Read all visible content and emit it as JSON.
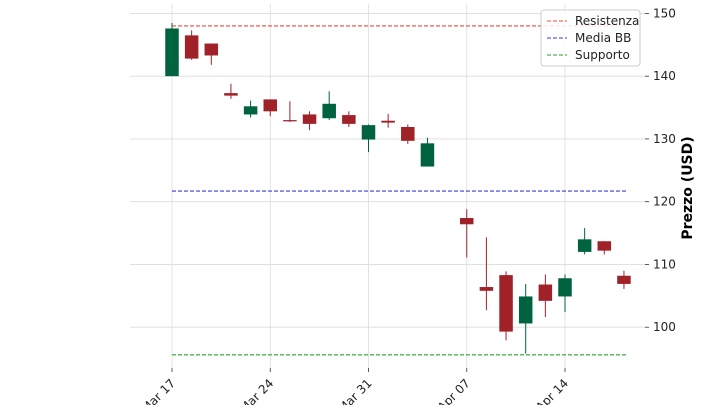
{
  "chart_data": {
    "type": "candlestick",
    "title": "",
    "xlabel": "",
    "ylabel": "Prezzo (USD)",
    "ylim": [
      93.5,
      151.5
    ],
    "y_ticks": [
      100,
      110,
      120,
      130,
      140,
      150
    ],
    "y_axis_side": "right",
    "grid": true,
    "legend_position": "top-right",
    "colors": {
      "up": "#006340",
      "down": "#a02128",
      "resistance": "#e74c3c",
      "mean": "#3b3bdc",
      "support": "#2ca02c"
    },
    "x_ticks": [
      {
        "label": "Mar 17",
        "index": 0
      },
      {
        "label": "Mar 24",
        "index": 5
      },
      {
        "label": "Mar 31",
        "index": 10
      },
      {
        "label": "Apr 07",
        "index": 15
      },
      {
        "label": "Apr 14",
        "index": 20
      }
    ],
    "candles": [
      {
        "index": 0,
        "open": 140.0,
        "high": 148.5,
        "low": 140.0,
        "close": 147.6
      },
      {
        "index": 1,
        "open": 146.5,
        "high": 147.3,
        "low": 142.6,
        "close": 142.8
      },
      {
        "index": 2,
        "open": 145.2,
        "high": 145.2,
        "low": 141.8,
        "close": 143.3
      },
      {
        "index": 3,
        "open": 137.3,
        "high": 138.8,
        "low": 136.4,
        "close": 136.9
      },
      {
        "index": 4,
        "open": 133.9,
        "high": 136.1,
        "low": 133.4,
        "close": 135.2
      },
      {
        "index": 5,
        "open": 136.3,
        "high": 136.3,
        "low": 133.6,
        "close": 134.4
      },
      {
        "index": 6,
        "open": 133.0,
        "high": 136.0,
        "low": 132.7,
        "close": 132.8
      },
      {
        "index": 7,
        "open": 133.9,
        "high": 134.4,
        "low": 131.4,
        "close": 132.4
      },
      {
        "index": 8,
        "open": 133.3,
        "high": 137.6,
        "low": 133.0,
        "close": 135.6
      },
      {
        "index": 9,
        "open": 133.8,
        "high": 134.4,
        "low": 131.9,
        "close": 132.4
      },
      {
        "index": 10,
        "open": 129.9,
        "high": 132.3,
        "low": 127.9,
        "close": 132.2
      },
      {
        "index": 11,
        "open": 132.9,
        "high": 134.0,
        "low": 131.8,
        "close": 132.6
      },
      {
        "index": 12,
        "open": 131.9,
        "high": 132.3,
        "low": 129.2,
        "close": 129.7
      },
      {
        "index": 13,
        "open": 125.6,
        "high": 130.2,
        "low": 125.6,
        "close": 129.3
      },
      {
        "index": 15,
        "open": 117.4,
        "high": 118.8,
        "low": 111.1,
        "close": 116.4
      },
      {
        "index": 16,
        "open": 106.4,
        "high": 114.3,
        "low": 102.7,
        "close": 105.8
      },
      {
        "index": 17,
        "open": 108.3,
        "high": 108.9,
        "low": 97.9,
        "close": 99.3
      },
      {
        "index": 18,
        "open": 100.6,
        "high": 106.9,
        "low": 95.8,
        "close": 104.9
      },
      {
        "index": 19,
        "open": 106.8,
        "high": 108.4,
        "low": 101.6,
        "close": 104.2
      },
      {
        "index": 20,
        "open": 104.9,
        "high": 108.4,
        "low": 102.4,
        "close": 107.8
      },
      {
        "index": 21,
        "open": 112.0,
        "high": 115.8,
        "low": 111.6,
        "close": 114.0
      },
      {
        "index": 22,
        "open": 113.7,
        "high": 113.7,
        "low": 111.6,
        "close": 112.2
      },
      {
        "index": 23,
        "open": 108.2,
        "high": 109.0,
        "low": 106.1,
        "close": 106.9
      }
    ],
    "hlines": [
      {
        "name": "Resistenza",
        "value": 148.0,
        "color": "#e74c3c"
      },
      {
        "name": "Media BB",
        "value": 121.7,
        "color": "#3b3bdc"
      },
      {
        "name": "Supporto",
        "value": 95.6,
        "color": "#2ca02c"
      }
    ]
  }
}
